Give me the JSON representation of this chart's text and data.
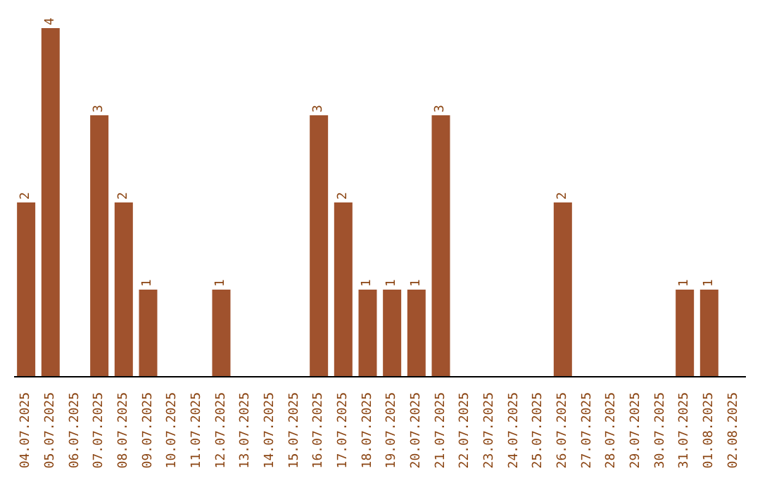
{
  "chart_data": {
    "type": "bar",
    "categories": [
      "04.07.2025",
      "05.07.2025",
      "06.07.2025",
      "07.07.2025",
      "08.07.2025",
      "09.07.2025",
      "10.07.2025",
      "11.07.2025",
      "12.07.2025",
      "13.07.2025",
      "14.07.2025",
      "15.07.2025",
      "16.07.2025",
      "17.07.2025",
      "18.07.2025",
      "19.07.2025",
      "20.07.2025",
      "21.07.2025",
      "22.07.2025",
      "23.07.2025",
      "24.07.2025",
      "25.07.2025",
      "26.07.2025",
      "27.07.2025",
      "28.07.2025",
      "29.07.2025",
      "30.07.2025",
      "31.07.2025",
      "01.08.2025",
      "02.08.2025"
    ],
    "values": [
      2,
      4,
      0,
      3,
      2,
      1,
      0,
      0,
      1,
      0,
      0,
      0,
      3,
      2,
      1,
      1,
      1,
      3,
      0,
      0,
      0,
      0,
      2,
      0,
      0,
      0,
      0,
      1,
      1,
      0
    ],
    "value_labels": [
      "2",
      "4",
      null,
      "3",
      "2",
      "1",
      null,
      null,
      "1",
      null,
      null,
      null,
      "3",
      "2",
      "1",
      "1",
      "1",
      "3",
      null,
      null,
      null,
      null,
      "2",
      null,
      null,
      null,
      null,
      "1",
      "1",
      null
    ],
    "color": "#a0522d",
    "tick_labels": "x",
    "grid": false,
    "legend": false
  }
}
